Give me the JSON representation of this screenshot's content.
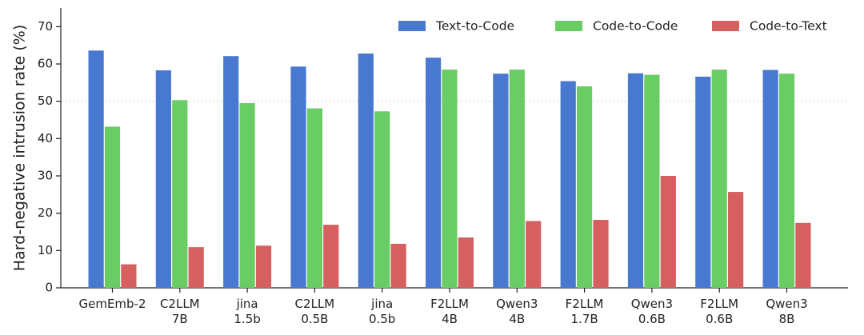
{
  "chart_data": {
    "type": "bar",
    "title": "",
    "xlabel": "",
    "ylabel": "Hard-negative intrusion rate (%)",
    "ylim": [
      0,
      75
    ],
    "yticks": [
      0,
      10,
      20,
      30,
      40,
      50,
      60,
      70
    ],
    "reference_line": 50,
    "legend_position": "top-right",
    "categories": [
      [
        "GemEmb-2"
      ],
      [
        "C2LLM",
        "7B"
      ],
      [
        "jina",
        "1.5b"
      ],
      [
        "C2LLM",
        "0.5B"
      ],
      [
        "jina",
        "0.5b"
      ],
      [
        "F2LLM",
        "4B"
      ],
      [
        "Qwen3",
        "4B"
      ],
      [
        "F2LLM",
        "1.7B"
      ],
      [
        "Qwen3",
        "0.6B"
      ],
      [
        "F2LLM",
        "0.6B"
      ],
      [
        "Qwen3",
        "8B"
      ]
    ],
    "series": [
      {
        "name": "Text-to-Code",
        "color": "#4878d0",
        "values": [
          63.6,
          58.3,
          62.1,
          59.3,
          62.8,
          61.7,
          57.4,
          55.4,
          57.5,
          56.6,
          58.4
        ]
      },
      {
        "name": "Code-to-Code",
        "color": "#6acc64",
        "values": [
          43.2,
          50.3,
          49.5,
          48.1,
          47.3,
          58.5,
          58.5,
          54.0,
          57.1,
          58.5,
          57.4
        ]
      },
      {
        "name": "Code-to-Text",
        "color": "#d65f5f",
        "values": [
          6.3,
          10.9,
          11.3,
          16.9,
          11.8,
          13.5,
          17.9,
          18.2,
          30.0,
          25.7,
          17.4
        ]
      }
    ]
  }
}
